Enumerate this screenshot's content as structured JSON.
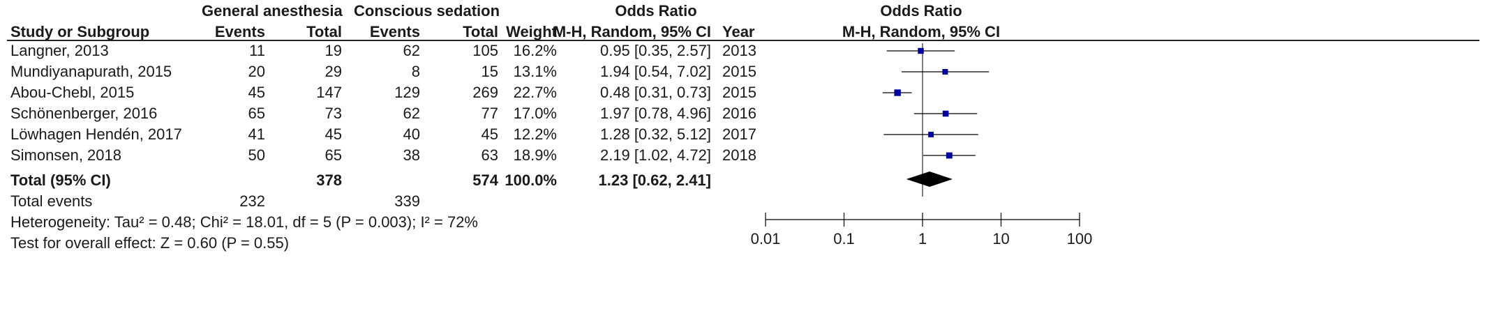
{
  "header": {
    "group1": "General anesthesia",
    "group2": "Conscious sedation",
    "effect": "Odds Ratio",
    "plot_effect": "Odds Ratio",
    "col_study": "Study or Subgroup",
    "col_events1": "Events",
    "col_total1": "Total",
    "col_events2": "Events",
    "col_total2": "Total",
    "col_weight": "Weight",
    "col_ci": "M-H, Random, 95% CI",
    "col_year": "Year",
    "plot_ci": "M-H, Random, 95% CI"
  },
  "studies": [
    {
      "name": "Langner, 2013",
      "e1": "11",
      "t1": "19",
      "e2": "62",
      "t2": "105",
      "weight": "16.2%",
      "ci": "0.95 [0.35, 2.57]",
      "year": "2013"
    },
    {
      "name": "Mundiyanapurath, 2015",
      "e1": "20",
      "t1": "29",
      "e2": "8",
      "t2": "15",
      "weight": "13.1%",
      "ci": "1.94 [0.54, 7.02]",
      "year": "2015"
    },
    {
      "name": "Abou-Chebl, 2015",
      "e1": "45",
      "t1": "147",
      "e2": "129",
      "t2": "269",
      "weight": "22.7%",
      "ci": "0.48 [0.31, 0.73]",
      "year": "2015"
    },
    {
      "name": "Schönenberger, 2016",
      "e1": "65",
      "t1": "73",
      "e2": "62",
      "t2": "77",
      "weight": "17.0%",
      "ci": "1.97 [0.78, 4.96]",
      "year": "2016"
    },
    {
      "name": "Löwhagen Hendén, 2017",
      "e1": "41",
      "t1": "45",
      "e2": "40",
      "t2": "45",
      "weight": "12.2%",
      "ci": "1.28 [0.32, 5.12]",
      "year": "2017"
    },
    {
      "name": "Simonsen, 2018",
      "e1": "50",
      "t1": "65",
      "e2": "38",
      "t2": "63",
      "weight": "18.9%",
      "ci": "2.19 [1.02, 4.72]",
      "year": "2018"
    }
  ],
  "total": {
    "label": "Total (95% CI)",
    "t1": "378",
    "t2": "574",
    "weight": "100.0%",
    "ci": "1.23 [0.62, 2.41]"
  },
  "total_events": {
    "label": "Total events",
    "e1": "232",
    "e2": "339"
  },
  "heterogeneity": "Heterogeneity: Tau² = 0.48; Chi² = 18.01, df = 5 (P = 0.003); I² = 72%",
  "overall_effect": "Test for overall effect: Z = 0.60 (P = 0.55)",
  "chart_data": {
    "type": "forest",
    "scale": "log",
    "xlim": [
      0.01,
      100
    ],
    "ticks": [
      0.01,
      0.1,
      1,
      10,
      100
    ],
    "tick_labels": [
      "0.01",
      "0.1",
      "1",
      "10",
      "100"
    ],
    "points": [
      {
        "or": 0.95,
        "lo": 0.35,
        "hi": 2.57,
        "weight": 16.2
      },
      {
        "or": 1.94,
        "lo": 0.54,
        "hi": 7.02,
        "weight": 13.1
      },
      {
        "or": 0.48,
        "lo": 0.31,
        "hi": 0.73,
        "weight": 22.7
      },
      {
        "or": 1.97,
        "lo": 0.78,
        "hi": 4.96,
        "weight": 17.0
      },
      {
        "or": 1.28,
        "lo": 0.32,
        "hi": 5.12,
        "weight": 12.2
      },
      {
        "or": 2.19,
        "lo": 1.02,
        "hi": 4.72,
        "weight": 18.9
      }
    ],
    "pooled": {
      "or": 1.23,
      "lo": 0.62,
      "hi": 2.41
    },
    "colors": {
      "marker": "#0000a0",
      "line": "#000000",
      "diamond": "#000000"
    }
  }
}
